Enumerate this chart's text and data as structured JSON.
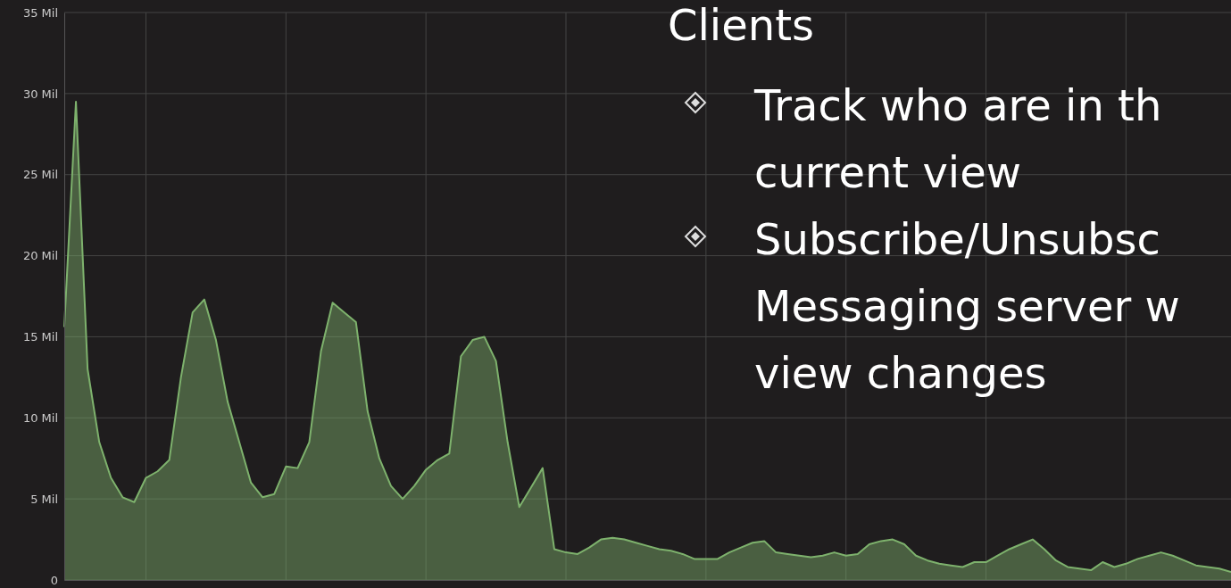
{
  "chart_data": {
    "type": "area",
    "categories": [
      null,
      null,
      null,
      null,
      null,
      null,
      null,
      null,
      null,
      null,
      null,
      null,
      null,
      null,
      null,
      null,
      null,
      null,
      null,
      null,
      null,
      null,
      null,
      null,
      null,
      null,
      null,
      null,
      null,
      null,
      null,
      null,
      null,
      null,
      null,
      null,
      null,
      null,
      null,
      null,
      null,
      null,
      null,
      null,
      null,
      null,
      null,
      null,
      null,
      null,
      null,
      null,
      null,
      null,
      null,
      null,
      null,
      null,
      null,
      null,
      null,
      null,
      null,
      null,
      null,
      null,
      null,
      null,
      null,
      null,
      null,
      null,
      null,
      null,
      null,
      null,
      null,
      null,
      null,
      null,
      null,
      null,
      null,
      null,
      null,
      null,
      null,
      null,
      null,
      null,
      null,
      null,
      null,
      null,
      null,
      null,
      null,
      null,
      null,
      null,
      null
    ],
    "series": [
      {
        "color": "#7eb26d",
        "values": [
          15.6,
          29.5,
          13.0,
          8.5,
          6.3,
          5.1,
          4.8,
          6.3,
          6.7,
          7.4,
          12.5,
          16.5,
          17.3,
          14.8,
          11.0,
          8.5,
          6.0,
          5.1,
          5.3,
          7.0,
          6.9,
          8.5,
          14.1,
          17.1,
          16.5,
          15.9,
          10.4,
          7.5,
          5.8,
          5.0,
          5.8,
          6.8,
          7.4,
          7.8,
          13.8,
          14.8,
          15.0,
          13.5,
          8.5,
          4.5,
          5.7,
          6.9,
          1.9,
          1.7,
          1.6,
          2.0,
          2.5,
          2.6,
          2.5,
          2.3,
          2.1,
          1.9,
          1.8,
          1.6,
          1.3,
          1.3,
          1.3,
          1.7,
          2.0,
          2.3,
          2.4,
          1.7,
          1.6,
          1.5,
          1.4,
          1.5,
          1.7,
          1.5,
          1.6,
          2.2,
          2.4,
          2.5,
          2.2,
          1.5,
          1.2,
          1.0,
          0.9,
          0.8,
          1.1,
          1.1,
          1.5,
          1.9,
          2.2,
          2.5,
          1.9,
          1.2,
          0.8,
          0.7,
          0.6,
          1.1,
          0.8,
          1.0,
          1.3,
          1.5,
          1.7,
          1.5,
          1.2,
          0.9,
          0.8,
          0.7,
          0.5
        ]
      }
    ],
    "ylim": [
      0,
      35
    ],
    "yticks": [
      0,
      {
        "value": 5,
        "label": "5 Mil"
      },
      {
        "value": 10,
        "label": "10 Mil"
      },
      {
        "value": 15,
        "label": "15 Mil"
      },
      {
        "value": 20,
        "label": "20 Mil"
      },
      {
        "value": 25,
        "label": "25 Mil"
      },
      {
        "value": 30,
        "label": "30 Mil"
      },
      {
        "value": 35,
        "label": "35 Mil"
      }
    ],
    "grid": true,
    "annotations": [
      "Clients",
      "Track who are in th",
      "current view",
      "Subscribe/Unsubsc",
      "Messaging server w",
      "view changes"
    ]
  }
}
